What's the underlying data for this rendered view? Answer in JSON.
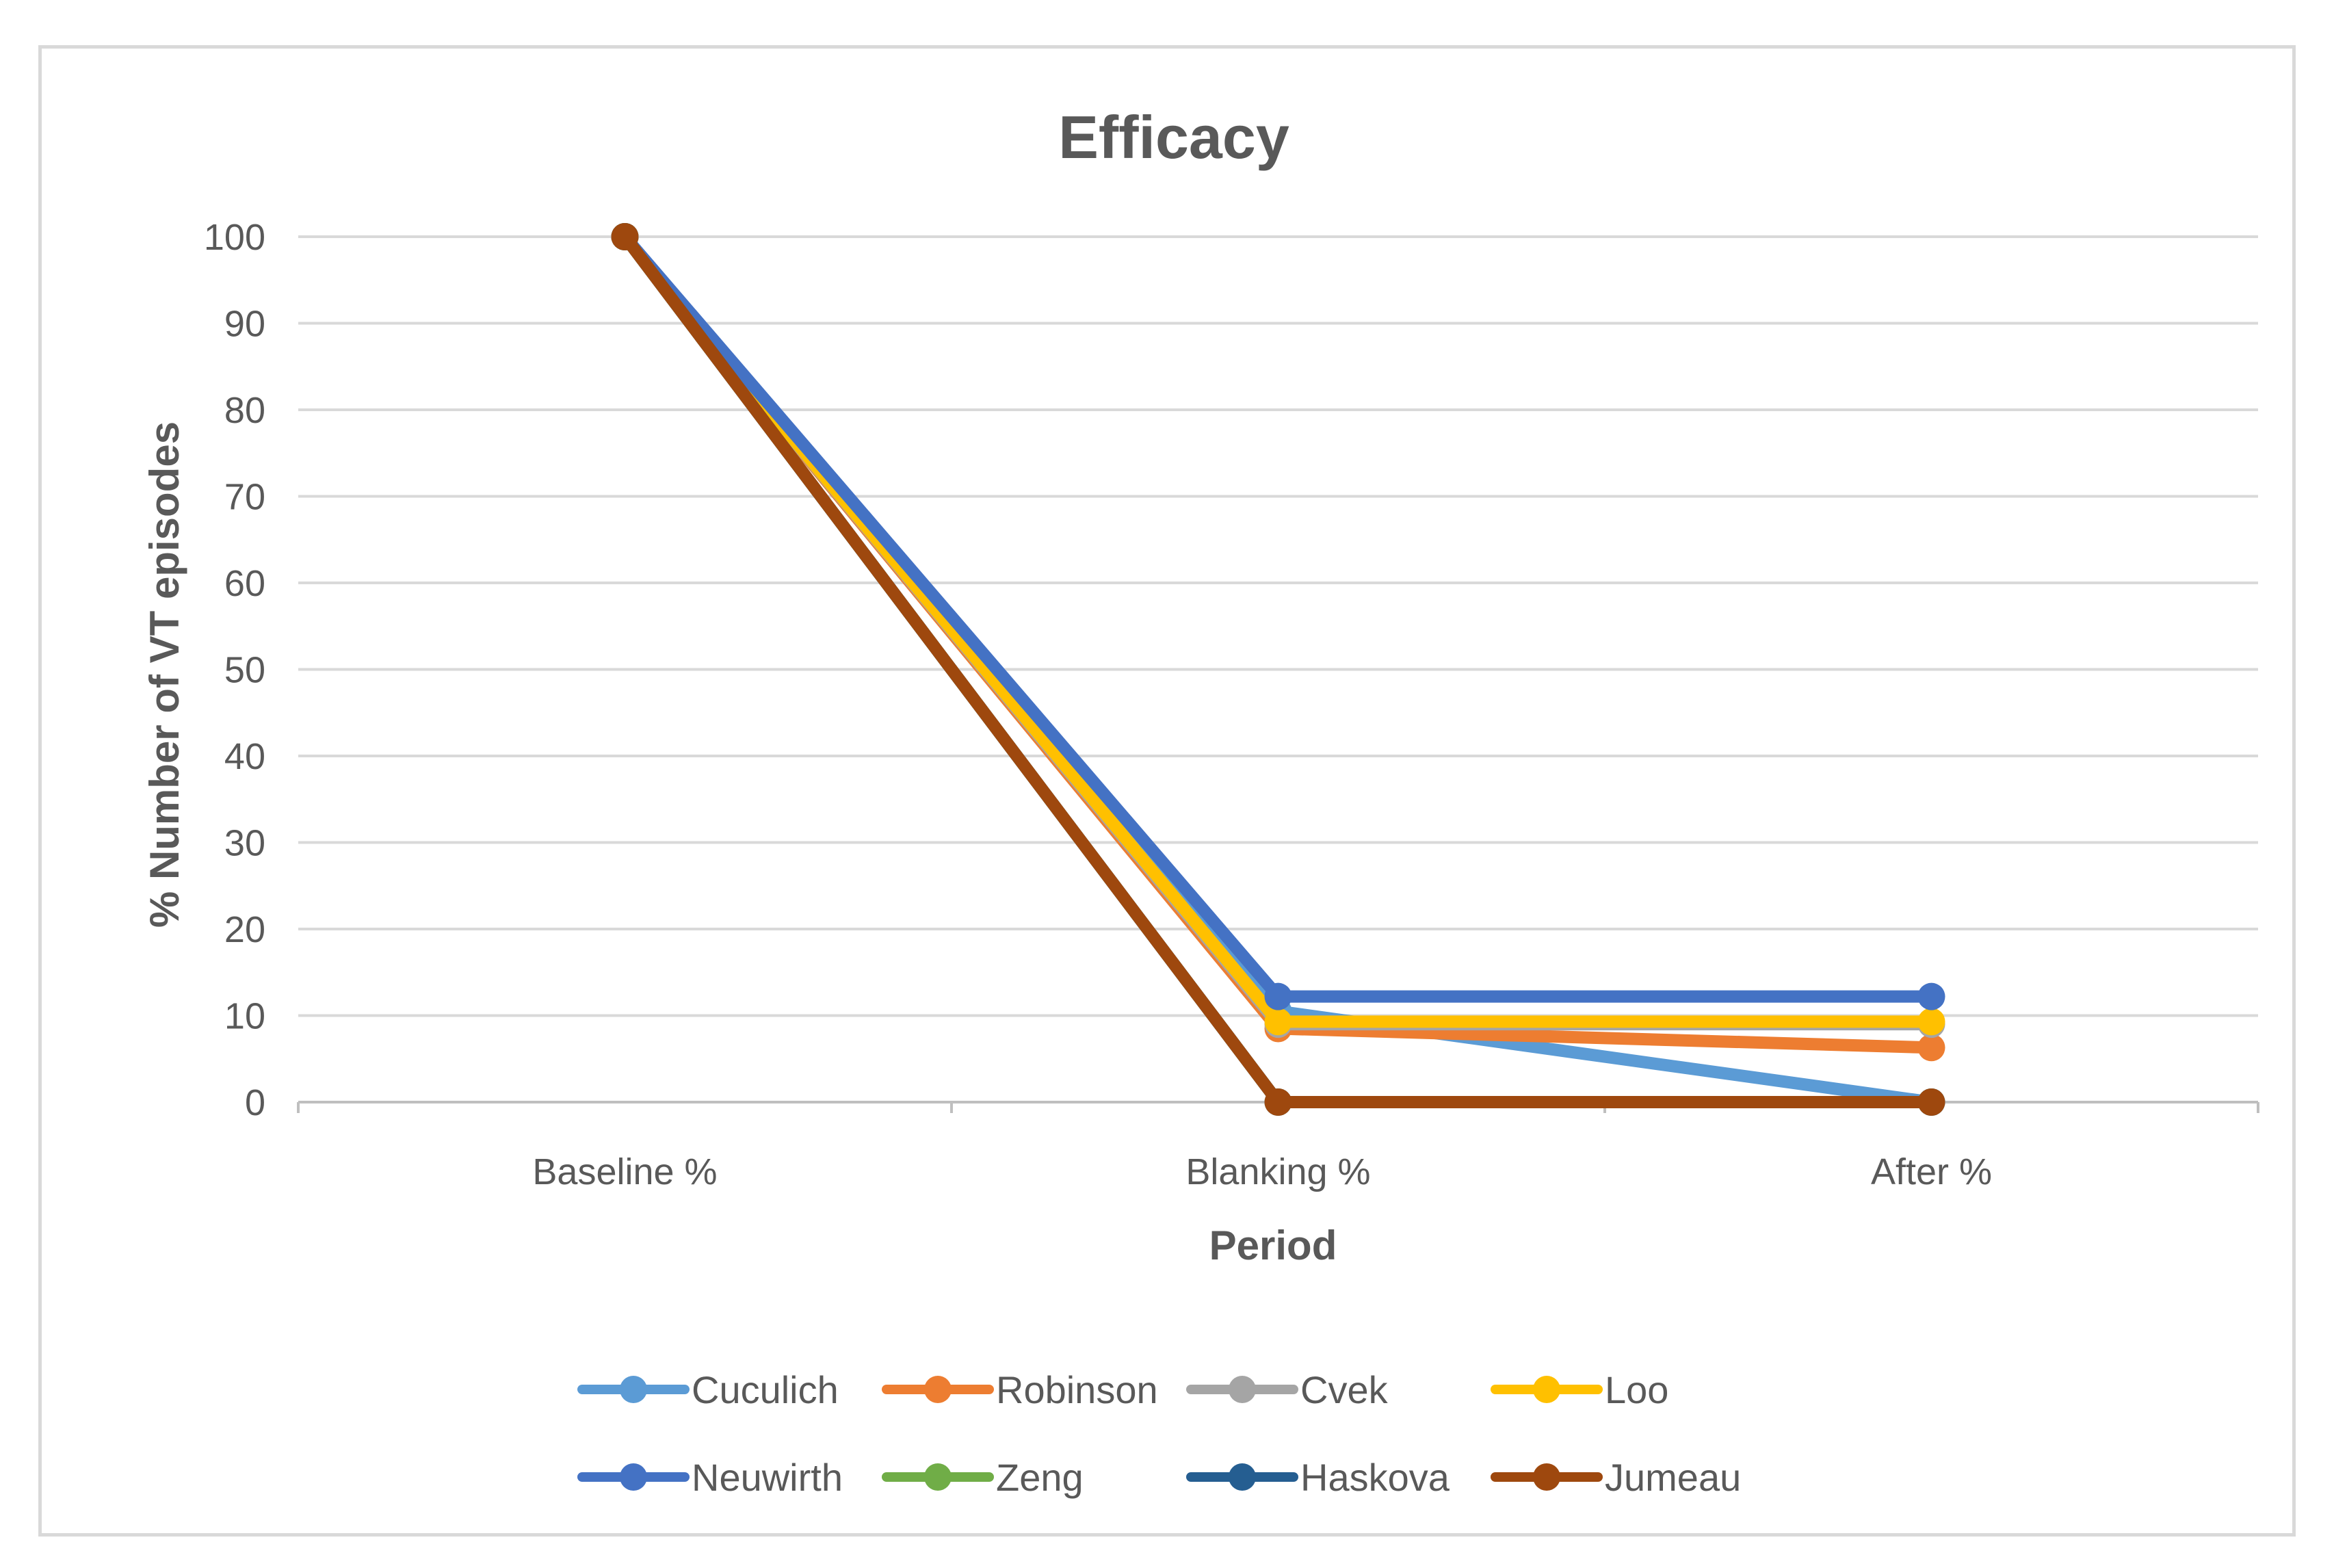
{
  "chart_data": {
    "type": "line",
    "title": "Efficacy",
    "xlabel": "Period",
    "ylabel": "% Number of VT episodes",
    "categories": [
      "Baseline %",
      "Blanking %",
      "After %"
    ],
    "ylim": [
      0,
      100
    ],
    "yticks": [
      0,
      10,
      20,
      30,
      40,
      50,
      60,
      70,
      80,
      90,
      100
    ],
    "grid": true,
    "legend_position": "bottom",
    "series": [
      {
        "name": "Cuculich",
        "color": "#5b9bd5",
        "values": [
          100,
          10.5,
          0
        ]
      },
      {
        "name": "Robinson",
        "color": "#ed7d31",
        "values": [
          100,
          8.5,
          6.3
        ]
      },
      {
        "name": "Cvek",
        "color": "#a5a5a5",
        "values": [
          100,
          9,
          9
        ]
      },
      {
        "name": "Loo",
        "color": "#ffc000",
        "values": [
          100,
          9.3,
          9.3
        ]
      },
      {
        "name": "Neuwirth",
        "color": "#4472c4",
        "values": [
          100,
          12.2,
          12.2
        ]
      },
      {
        "name": "Zeng",
        "color": "#70ad47",
        "values": [
          100,
          0,
          0
        ]
      },
      {
        "name": "Haskova",
        "color": "#255e91",
        "values": [
          100,
          0,
          0
        ]
      },
      {
        "name": "Jumeau",
        "color": "#9e480e",
        "values": [
          100,
          0,
          0
        ]
      }
    ]
  }
}
